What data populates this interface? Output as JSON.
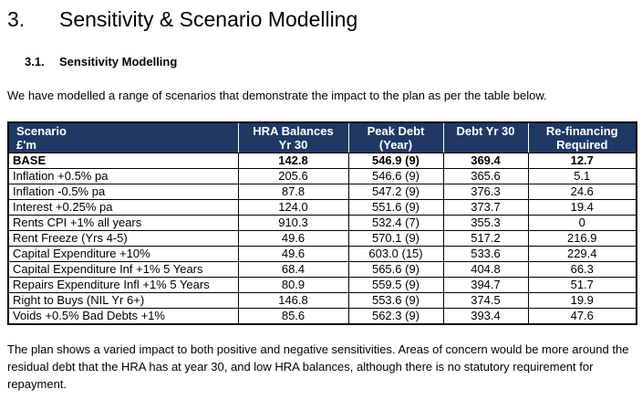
{
  "page": {
    "section": {
      "number": "3.",
      "title": "Sensitivity & Scenario Modelling"
    },
    "subsection": {
      "number": "3.1.",
      "title": "Sensitivity Modelling"
    },
    "intro_paragraph": "We have modelled a range of scenarios that demonstrate the impact to the plan as per the table below.",
    "closing_paragraph": "The plan shows a varied impact to both positive and negative sensitivities. Areas of concern would be more around the residual debt that the HRA has at year 30, and low HRA balances, although there is no statutory requirement for repayment."
  },
  "table": {
    "style": {
      "header_bg": "#1F3864",
      "header_text": "#FFFFFF",
      "border": "#000000"
    },
    "columns": [
      {
        "key": "scenario",
        "lines": [
          "Scenario",
          "£'m"
        ],
        "align": "left"
      },
      {
        "key": "hra-balances-yr30",
        "lines": [
          "HRA Balances",
          "Yr 30"
        ],
        "align": "center"
      },
      {
        "key": "peak-debt-year",
        "lines": [
          "Peak Debt",
          "(Year)"
        ],
        "align": "center"
      },
      {
        "key": "debt-yr30",
        "lines": [
          "Debt Yr 30"
        ],
        "align": "center"
      },
      {
        "key": "refinancing-required",
        "lines": [
          "Re-financing",
          "Required"
        ],
        "align": "center"
      }
    ],
    "rows": [
      {
        "bold": true,
        "cells": [
          "BASE",
          "142.8",
          "546.9 (9)",
          "369.4",
          "12.7"
        ]
      },
      {
        "bold": false,
        "cells": [
          "Inflation +0.5% pa",
          "205.6",
          "546.6 (9)",
          "365.6",
          "5.1"
        ]
      },
      {
        "bold": false,
        "cells": [
          "Inflation -0.5% pa",
          "87.8",
          "547.2 (9)",
          "376.3",
          "24.6"
        ]
      },
      {
        "bold": false,
        "cells": [
          "Interest +0.25% pa",
          "124.0",
          "551.6 (9)",
          "373.7",
          "19.4"
        ]
      },
      {
        "bold": false,
        "cells": [
          "Rents CPI +1% all years",
          "910.3",
          "532.4 (7)",
          "355.3",
          "0"
        ]
      },
      {
        "bold": false,
        "cells": [
          "Rent Freeze (Yrs 4-5)",
          "49.6",
          "570.1 (9)",
          "517.2",
          "216.9"
        ]
      },
      {
        "bold": false,
        "cells": [
          "Capital Expenditure +10%",
          "49.6",
          "603.0 (15)",
          "533.6",
          "229.4"
        ]
      },
      {
        "bold": false,
        "cells": [
          "Capital Expenditure Inf +1% 5 Years",
          "68.4",
          "565.6 (9)",
          "404.8",
          "66.3"
        ]
      },
      {
        "bold": false,
        "cells": [
          "Repairs Expenditure Infl +1% 5 Years",
          "80.9",
          "559.5 (9)",
          "394.7",
          "51.7"
        ]
      },
      {
        "bold": false,
        "cells": [
          "Right to Buys (NIL Yr 6+)",
          "146.8",
          "553.6 (9)",
          "374.5",
          "19.9"
        ]
      },
      {
        "bold": false,
        "cells": [
          "Voids +0.5% Bad Debts +1%",
          "85.6",
          "562.3 (9)",
          "393.4",
          "47.6"
        ]
      }
    ]
  }
}
